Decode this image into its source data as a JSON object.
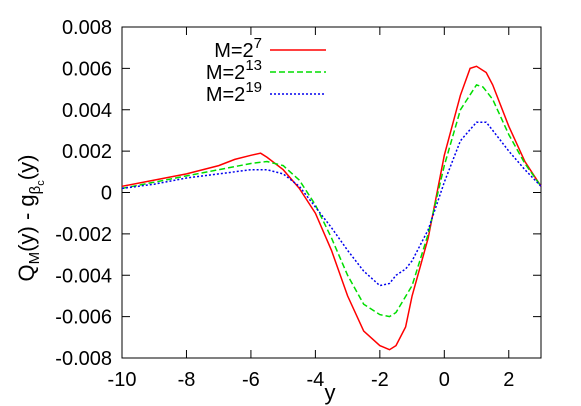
{
  "chart_data": {
    "type": "line",
    "xlabel": "y",
    "ylabel": {
      "main_a": "Q",
      "sub_a": "M",
      "main_b": "(y) - g",
      "sub_b": "β",
      "subsub_b": "c",
      "main_c": "(y)"
    },
    "xlim": [
      -10,
      3
    ],
    "ylim": [
      -0.008,
      0.008
    ],
    "xticks": [
      -10,
      -8,
      -6,
      -4,
      -2,
      0,
      2
    ],
    "xtick_labels": [
      "-10",
      "-8",
      "-6",
      "-4",
      "-2",
      "0",
      "2"
    ],
    "yticks": [
      -0.008,
      -0.006,
      -0.004,
      -0.002,
      0,
      0.002,
      0.004,
      0.006,
      0.008
    ],
    "ytick_labels": [
      "-0.008",
      "-0.006",
      "-0.004",
      "-0.002",
      "0",
      "0.002",
      "0.004",
      "0.006",
      "0.008"
    ],
    "grid": false,
    "legend_position": "top-left",
    "series": [
      {
        "name": "M=2^7",
        "legend_base": "M=2",
        "legend_exp": "7",
        "color": "#ff0000",
        "dash": "solid",
        "x": [
          -10,
          -9,
          -8,
          -7,
          -6.5,
          -6,
          -5.7,
          -5.5,
          -5,
          -4.5,
          -4,
          -3.5,
          -3,
          -2.5,
          -2,
          -1.7,
          -1.5,
          -1.2,
          -1,
          -0.5,
          0,
          0.5,
          0.8,
          1,
          1.3,
          1.5,
          2,
          2.5,
          3
        ],
        "y": [
          0.0003,
          0.0006,
          0.0009,
          0.0013,
          0.0016,
          0.0018,
          0.0019,
          0.0017,
          0.0011,
          0.0002,
          -0.001,
          -0.0028,
          -0.005,
          -0.0067,
          -0.0074,
          -0.0076,
          -0.0074,
          -0.0065,
          -0.005,
          -0.0022,
          0.0018,
          0.0047,
          0.006,
          0.0061,
          0.0058,
          0.0052,
          0.0032,
          0.0015,
          0.0003
        ]
      },
      {
        "name": "M=2^13",
        "legend_base": "M=2",
        "legend_exp": "13",
        "color": "#00dd00",
        "dash": "6,3",
        "x": [
          -10,
          -9,
          -8,
          -7,
          -6,
          -5.5,
          -5,
          -4.5,
          -4,
          -3.5,
          -3,
          -2.5,
          -2,
          -1.7,
          -1.5,
          -1,
          -0.5,
          0,
          0.5,
          1,
          1.2,
          1.5,
          2,
          2.5,
          3
        ],
        "y": [
          0.0002,
          0.0005,
          0.0008,
          0.0011,
          0.0014,
          0.0015,
          0.0013,
          0.0006,
          -0.0006,
          -0.0022,
          -0.004,
          -0.0054,
          -0.0059,
          -0.006,
          -0.0058,
          -0.0045,
          -0.002,
          0.0013,
          0.004,
          0.0052,
          0.0051,
          0.0045,
          0.0028,
          0.0014,
          0.0003
        ]
      },
      {
        "name": "M=2^19",
        "legend_base": "M=2",
        "legend_exp": "19",
        "color": "#0000ee",
        "dash": "2,2",
        "x": [
          -10,
          -9,
          -8,
          -7,
          -6,
          -5.5,
          -5,
          -4.5,
          -4,
          -3.5,
          -3,
          -2.5,
          -2,
          -1.7,
          -1.5,
          -1.2,
          -1,
          -0.5,
          0,
          0.5,
          1,
          1.3,
          1.5,
          2,
          2.5,
          3
        ],
        "y": [
          0.0002,
          0.0004,
          0.0007,
          0.0009,
          0.0011,
          0.0011,
          0.0009,
          0.0003,
          -0.0007,
          -0.0017,
          -0.0028,
          -0.0038,
          -0.0045,
          -0.0044,
          -0.004,
          -0.0037,
          -0.0033,
          -0.0018,
          0.0005,
          0.0025,
          0.0034,
          0.0034,
          0.003,
          0.002,
          0.0011,
          0.0003
        ]
      }
    ]
  }
}
